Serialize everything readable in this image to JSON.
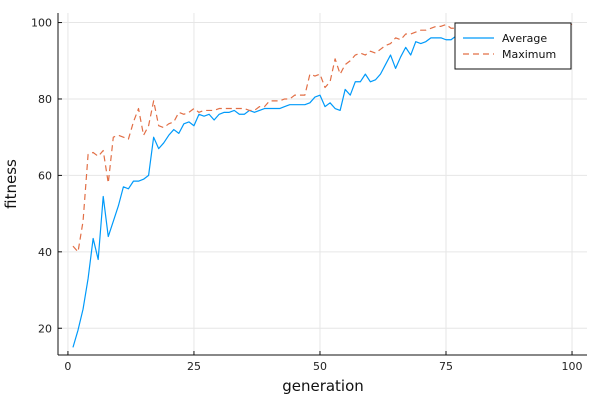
{
  "chart_data": {
    "type": "line",
    "xlabel": "generation",
    "ylabel": "fitness",
    "xlim": [
      -1.97,
      102.97
    ],
    "ylim": [
      13.0,
      102.5
    ],
    "xticks": [
      0,
      25,
      50,
      75,
      100
    ],
    "yticks": [
      20,
      40,
      60,
      80,
      100
    ],
    "grid": true,
    "legend_position": "top-right",
    "series": [
      {
        "name": "Average",
        "color": "#009AFA",
        "style": "solid",
        "points": [
          [
            1,
            15
          ],
          [
            2,
            19.5
          ],
          [
            3,
            25
          ],
          [
            4,
            33
          ],
          [
            5,
            43.5
          ],
          [
            6,
            38
          ],
          [
            7,
            54.5
          ],
          [
            8,
            44
          ],
          [
            9,
            48
          ],
          [
            10,
            52
          ],
          [
            11,
            57
          ],
          [
            12,
            56.5
          ],
          [
            13,
            58.5
          ],
          [
            14,
            58.5
          ],
          [
            15,
            59
          ],
          [
            16,
            60
          ],
          [
            17,
            70
          ],
          [
            18,
            67
          ],
          [
            19,
            68.5
          ],
          [
            20,
            70.5
          ],
          [
            21,
            72
          ],
          [
            22,
            71
          ],
          [
            23,
            73.5
          ],
          [
            24,
            74
          ],
          [
            25,
            73
          ],
          [
            26,
            76
          ],
          [
            27,
            75.5
          ],
          [
            28,
            76
          ],
          [
            29,
            74.5
          ],
          [
            30,
            76
          ],
          [
            31,
            76.5
          ],
          [
            32,
            76.5
          ],
          [
            33,
            77
          ],
          [
            34,
            76
          ],
          [
            35,
            76
          ],
          [
            36,
            77
          ],
          [
            37,
            76.5
          ],
          [
            38,
            77
          ],
          [
            39,
            77.5
          ],
          [
            40,
            77.5
          ],
          [
            41,
            77.5
          ],
          [
            42,
            77.5
          ],
          [
            43,
            78
          ],
          [
            44,
            78.5
          ],
          [
            45,
            78.5
          ],
          [
            46,
            78.5
          ],
          [
            47,
            78.5
          ],
          [
            48,
            79
          ],
          [
            49,
            80.5
          ],
          [
            50,
            81
          ],
          [
            51,
            78
          ],
          [
            52,
            79
          ],
          [
            53,
            77.5
          ],
          [
            54,
            77
          ],
          [
            55,
            82.5
          ],
          [
            56,
            81
          ],
          [
            57,
            84.5
          ],
          [
            58,
            84.5
          ],
          [
            59,
            86.5
          ],
          [
            60,
            84.5
          ],
          [
            61,
            85
          ],
          [
            62,
            86.5
          ],
          [
            63,
            89
          ],
          [
            64,
            91.5
          ],
          [
            65,
            88
          ],
          [
            66,
            91
          ],
          [
            67,
            93.5
          ],
          [
            68,
            91.5
          ],
          [
            69,
            95
          ],
          [
            70,
            94.5
          ],
          [
            71,
            95
          ],
          [
            72,
            96
          ],
          [
            73,
            96
          ],
          [
            74,
            96
          ],
          [
            75,
            95.5
          ],
          [
            76,
            95.5
          ],
          [
            77,
            96.5
          ],
          [
            78,
            95
          ],
          [
            79,
            97
          ],
          [
            80,
            98
          ],
          [
            81,
            98
          ],
          [
            82,
            98.5
          ],
          [
            83,
            98.5
          ],
          [
            84,
            98.5
          ],
          [
            85,
            99
          ],
          [
            86,
            99
          ],
          [
            87,
            99
          ],
          [
            88,
            99
          ],
          [
            89,
            99
          ],
          [
            90,
            99
          ],
          [
            91,
            99.5
          ],
          [
            92,
            99.5
          ],
          [
            93,
            99.5
          ],
          [
            94,
            99.5
          ],
          [
            95,
            99.5
          ],
          [
            96,
            99.5
          ],
          [
            97,
            99.5
          ],
          [
            98,
            99.5
          ],
          [
            99,
            99.5
          ],
          [
            100,
            99.5
          ]
        ]
      },
      {
        "name": "Maximum",
        "color": "#E26F46",
        "style": "dashed",
        "points": [
          [
            1,
            41.5
          ],
          [
            2,
            40
          ],
          [
            3,
            48
          ],
          [
            4,
            65.5
          ],
          [
            5,
            66
          ],
          [
            6,
            65
          ],
          [
            7,
            66.5
          ],
          [
            8,
            58
          ],
          [
            9,
            70
          ],
          [
            10,
            70.5
          ],
          [
            11,
            70
          ],
          [
            12,
            69.5
          ],
          [
            13,
            74
          ],
          [
            14,
            77.5
          ],
          [
            15,
            70.5
          ],
          [
            16,
            73
          ],
          [
            17,
            79.5
          ],
          [
            18,
            73
          ],
          [
            19,
            72.5
          ],
          [
            20,
            73.5
          ],
          [
            21,
            74
          ],
          [
            22,
            76.5
          ],
          [
            23,
            76
          ],
          [
            24,
            76.5
          ],
          [
            25,
            77.5
          ],
          [
            26,
            76.5
          ],
          [
            27,
            77
          ],
          [
            28,
            77
          ],
          [
            29,
            77
          ],
          [
            30,
            77.5
          ],
          [
            31,
            77.5
          ],
          [
            32,
            77.5
          ],
          [
            33,
            77.5
          ],
          [
            34,
            77.5
          ],
          [
            35,
            77.5
          ],
          [
            36,
            77
          ],
          [
            37,
            77
          ],
          [
            38,
            78
          ],
          [
            39,
            78
          ],
          [
            40,
            79.5
          ],
          [
            41,
            79.5
          ],
          [
            42,
            79.5
          ],
          [
            43,
            80
          ],
          [
            44,
            80
          ],
          [
            45,
            81
          ],
          [
            46,
            81
          ],
          [
            47,
            81
          ],
          [
            48,
            86.5
          ],
          [
            49,
            86
          ],
          [
            50,
            86.5
          ],
          [
            51,
            83
          ],
          [
            52,
            84.5
          ],
          [
            53,
            90.5
          ],
          [
            54,
            86.5
          ],
          [
            55,
            89
          ],
          [
            56,
            90
          ],
          [
            57,
            91.5
          ],
          [
            58,
            92
          ],
          [
            59,
            91.5
          ],
          [
            60,
            92.5
          ],
          [
            61,
            92
          ],
          [
            62,
            93
          ],
          [
            63,
            94
          ],
          [
            64,
            94.5
          ],
          [
            65,
            96
          ],
          [
            66,
            95.5
          ],
          [
            67,
            97
          ],
          [
            68,
            97
          ],
          [
            69,
            97.5
          ],
          [
            70,
            98
          ],
          [
            71,
            98
          ],
          [
            72,
            98.5
          ],
          [
            73,
            99
          ],
          [
            74,
            99
          ],
          [
            75,
            99.5
          ],
          [
            76,
            98.5
          ],
          [
            77,
            98.5
          ],
          [
            78,
            99.5
          ],
          [
            79,
            99.5
          ],
          [
            80,
            99.5
          ],
          [
            81,
            99.5
          ],
          [
            82,
            99.5
          ],
          [
            83,
            99.5
          ],
          [
            84,
            99.5
          ],
          [
            85,
            99.5
          ],
          [
            86,
            99.5
          ],
          [
            87,
            99.5
          ],
          [
            88,
            99.5
          ],
          [
            89,
            99.5
          ],
          [
            90,
            99.5
          ],
          [
            91,
            99.5
          ],
          [
            92,
            99.5
          ],
          [
            93,
            99.5
          ],
          [
            94,
            99.5
          ],
          [
            95,
            99.5
          ],
          [
            96,
            99.5
          ],
          [
            97,
            99.5
          ],
          [
            98,
            99.5
          ],
          [
            99,
            99.5
          ],
          [
            100,
            99.5
          ]
        ]
      }
    ]
  }
}
